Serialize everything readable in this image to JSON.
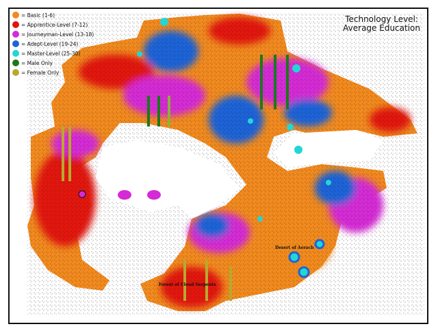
{
  "title": {
    "line1": "Technology Level:",
    "line2": "Average Education"
  },
  "legend": [
    {
      "label": "= Basic (1-6)",
      "color": "#f28a1e"
    },
    {
      "label": "= Apprentice-Level (7-12)",
      "color": "#e3120f"
    },
    {
      "label": "= Journeyman-Level (13-18)",
      "color": "#d62ad6"
    },
    {
      "label": "= Adept-Level (19-24)",
      "color": "#1f63d8"
    },
    {
      "label": "= Master-Level (25-30)",
      "color": "#22d6d6"
    },
    {
      "label": "= Male Only",
      "color": "#1a7a1a"
    },
    {
      "label": "= Female Only",
      "color": "#b8a92e"
    }
  ],
  "map_labels": {
    "desert": "Desert of Aerach",
    "forest": "Forest of Cloud Serpents"
  }
}
